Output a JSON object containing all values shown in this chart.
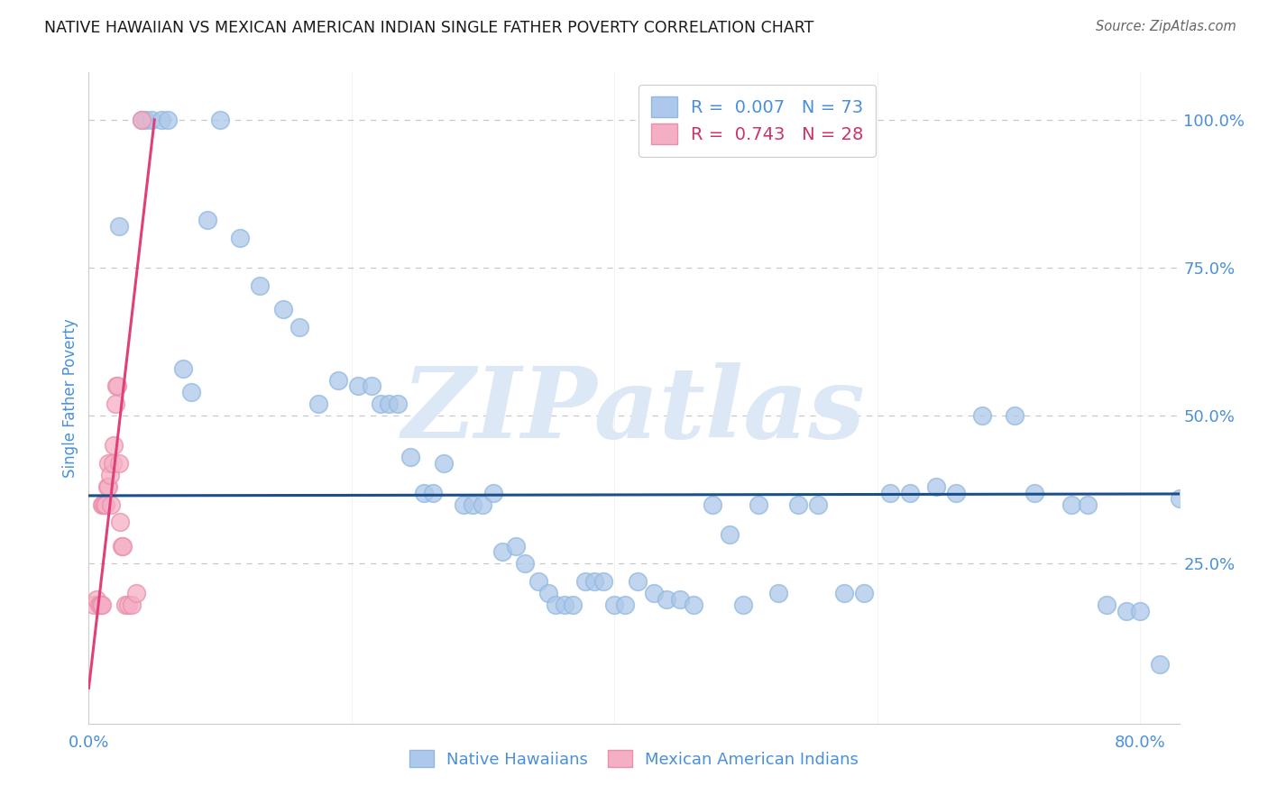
{
  "title": "NATIVE HAWAIIAN VS MEXICAN AMERICAN INDIAN SINGLE FATHER POVERTY CORRELATION CHART",
  "source": "Source: ZipAtlas.com",
  "ylabel": "Single Father Poverty",
  "xlim": [
    0.0,
    0.83
  ],
  "ylim": [
    -0.02,
    1.08
  ],
  "y_ticks_right": [
    0.25,
    0.5,
    0.75,
    1.0
  ],
  "y_tick_labels_right": [
    "25.0%",
    "50.0%",
    "75.0%",
    "100.0%"
  ],
  "legend_entries": [
    {
      "label": "Native Hawaiians",
      "color": "#adc8ea",
      "r": "0.007",
      "n": "73"
    },
    {
      "label": "Mexican American Indians",
      "color": "#f5afc5",
      "r": "0.743",
      "n": "28"
    }
  ],
  "watermark": "ZIPatlas",
  "blue_scatter_x": [
    0.023,
    0.04,
    0.043,
    0.048,
    0.055,
    0.06,
    0.072,
    0.078,
    0.09,
    0.1,
    0.115,
    0.13,
    0.148,
    0.16,
    0.175,
    0.19,
    0.205,
    0.215,
    0.222,
    0.228,
    0.235,
    0.245,
    0.255,
    0.262,
    0.27,
    0.285,
    0.292,
    0.3,
    0.308,
    0.315,
    0.325,
    0.332,
    0.342,
    0.35,
    0.355,
    0.362,
    0.368,
    0.378,
    0.385,
    0.392,
    0.4,
    0.408,
    0.418,
    0.43,
    0.44,
    0.45,
    0.46,
    0.475,
    0.488,
    0.498,
    0.51,
    0.525,
    0.54,
    0.555,
    0.575,
    0.59,
    0.61,
    0.625,
    0.645,
    0.66,
    0.68,
    0.705,
    0.72,
    0.748,
    0.76,
    0.775,
    0.79,
    0.8,
    0.815,
    0.83
  ],
  "blue_scatter_y": [
    0.82,
    1.0,
    1.0,
    1.0,
    1.0,
    1.0,
    0.58,
    0.54,
    0.83,
    1.0,
    0.8,
    0.72,
    0.68,
    0.65,
    0.52,
    0.56,
    0.55,
    0.55,
    0.52,
    0.52,
    0.52,
    0.43,
    0.37,
    0.37,
    0.42,
    0.35,
    0.35,
    0.35,
    0.37,
    0.27,
    0.28,
    0.25,
    0.22,
    0.2,
    0.18,
    0.18,
    0.18,
    0.22,
    0.22,
    0.22,
    0.18,
    0.18,
    0.22,
    0.2,
    0.19,
    0.19,
    0.18,
    0.35,
    0.3,
    0.18,
    0.35,
    0.2,
    0.35,
    0.35,
    0.2,
    0.2,
    0.37,
    0.37,
    0.38,
    0.37,
    0.5,
    0.5,
    0.37,
    0.35,
    0.35,
    0.18,
    0.17,
    0.17,
    0.08,
    0.36
  ],
  "pink_scatter_x": [
    0.004,
    0.006,
    0.008,
    0.009,
    0.01,
    0.01,
    0.011,
    0.012,
    0.013,
    0.014,
    0.015,
    0.015,
    0.016,
    0.017,
    0.018,
    0.019,
    0.02,
    0.021,
    0.022,
    0.023,
    0.024,
    0.025,
    0.026,
    0.028,
    0.03,
    0.033,
    0.036,
    0.04
  ],
  "pink_scatter_y": [
    0.18,
    0.19,
    0.18,
    0.18,
    0.18,
    0.35,
    0.35,
    0.35,
    0.35,
    0.38,
    0.38,
    0.42,
    0.4,
    0.35,
    0.42,
    0.45,
    0.52,
    0.55,
    0.55,
    0.42,
    0.32,
    0.28,
    0.28,
    0.18,
    0.18,
    0.18,
    0.2,
    1.0
  ],
  "blue_line_x": [
    0.0,
    0.83
  ],
  "blue_line_y": [
    0.365,
    0.368
  ],
  "pink_line_x": [
    0.0,
    0.05
  ],
  "pink_line_y": [
    0.04,
    1.0
  ],
  "title_color": "#1a1a1a",
  "axis_tick_color": "#4a90d9",
  "scatter_blue": "#adc8ea",
  "scatter_blue_edge": "#90b8e0",
  "scatter_pink": "#f5afc5",
  "scatter_pink_edge": "#e890a8",
  "line_blue": "#1a4f8a",
  "line_pink": "#e0407a",
  "grid_color": "#c8c8c8",
  "watermark_color": "#dce8f5",
  "background_color": "#ffffff",
  "source_color": "#666666"
}
